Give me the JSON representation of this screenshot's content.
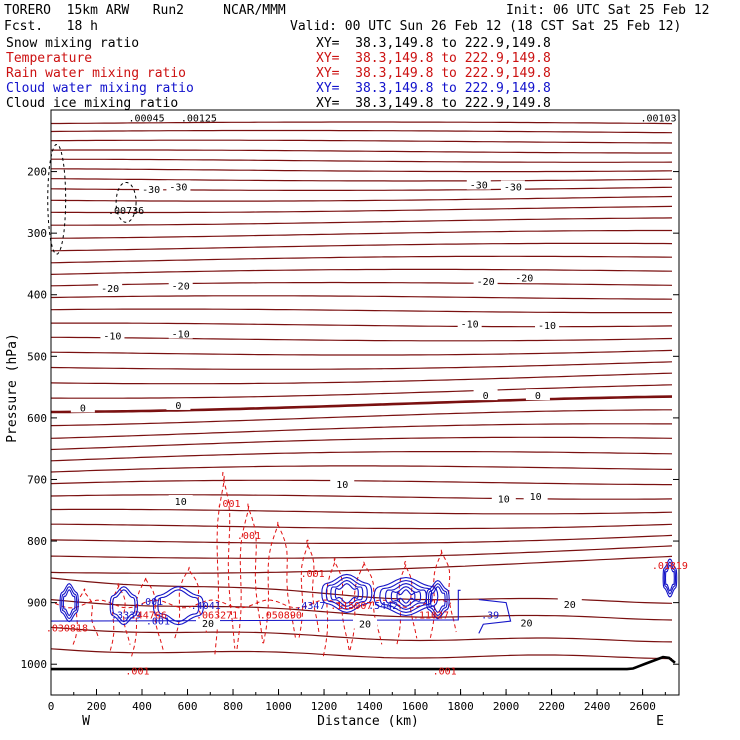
{
  "header": {
    "model": "TORERO  15km ARW   Run2     NCAR/MMM",
    "fcst": "Fcst.   18 h",
    "init": "Init: 06 UTC Sat 25 Feb 12",
    "valid": "Valid: 00 UTC Sun 26 Feb 12 (18 CST Sat 25 Feb 12)"
  },
  "legend": [
    {
      "label": "Snow mixing ratio",
      "xy": "XY=  38.3,149.8 to 222.9,149.8",
      "color": "#000000"
    },
    {
      "label": "Temperature",
      "xy": "XY=  38.3,149.8 to 222.9,149.8",
      "color": "#cc1111"
    },
    {
      "label": "Rain water mixing ratio",
      "xy": "XY=  38.3,149.8 to 222.9,149.8",
      "color": "#cc1111"
    },
    {
      "label": "Cloud water mixing ratio",
      "xy": "XY=  38.3,149.8 to 222.9,149.8",
      "color": "#1111cc"
    },
    {
      "label": "Cloud ice mixing ratio",
      "xy": "XY=  38.3,149.8 to 222.9,149.8",
      "color": "#000000"
    }
  ],
  "chart_data": {
    "type": "cross-section contour",
    "xlabel": "Distance (km)",
    "ylabel": "Pressure (hPa)",
    "xlim": [
      0,
      2760
    ],
    "ylim": [
      1050,
      100
    ],
    "x_ticks": [
      0,
      200,
      400,
      600,
      800,
      1000,
      1200,
      1400,
      1600,
      1800,
      2000,
      2200,
      2400,
      2600
    ],
    "y_ticks": [
      200,
      300,
      400,
      500,
      600,
      700,
      800,
      900,
      1000
    ],
    "left_endpoint": "W",
    "right_endpoint": "E",
    "colors": {
      "temperature": "#7a1010",
      "rain": "#e01010",
      "cloud_water": "#1515c8",
      "ground": "#000000"
    },
    "temperature_labels": [
      {
        "x": 440,
        "p": 228,
        "label": "-30"
      },
      {
        "x": 560,
        "p": 224,
        "label": "-30"
      },
      {
        "x": 1880,
        "p": 221,
        "label": "-30"
      },
      {
        "x": 2030,
        "p": 224,
        "label": "-30"
      },
      {
        "x": 260,
        "p": 389,
        "label": "-20"
      },
      {
        "x": 570,
        "p": 385,
        "label": "-20"
      },
      {
        "x": 1910,
        "p": 378,
        "label": "-20"
      },
      {
        "x": 2080,
        "p": 372,
        "label": "-20"
      },
      {
        "x": 270,
        "p": 466,
        "label": "-10"
      },
      {
        "x": 570,
        "p": 463,
        "label": "-10"
      },
      {
        "x": 1840,
        "p": 447,
        "label": "-10"
      },
      {
        "x": 2180,
        "p": 449,
        "label": "-10"
      },
      {
        "x": 140,
        "p": 583,
        "label": "0"
      },
      {
        "x": 560,
        "p": 579,
        "label": "0"
      },
      {
        "x": 1910,
        "p": 563,
        "label": "0"
      },
      {
        "x": 2140,
        "p": 563,
        "label": "0"
      },
      {
        "x": 570,
        "p": 735,
        "label": "10"
      },
      {
        "x": 1280,
        "p": 707,
        "label": "10"
      },
      {
        "x": 1990,
        "p": 731,
        "label": "10"
      },
      {
        "x": 2130,
        "p": 727,
        "label": "10"
      },
      {
        "x": 690,
        "p": 933,
        "label": "20"
      },
      {
        "x": 1380,
        "p": 934,
        "label": "20"
      },
      {
        "x": 2090,
        "p": 932,
        "label": "20"
      },
      {
        "x": 2280,
        "p": 902,
        "label": "20"
      }
    ],
    "maxima_labels": [
      {
        "x": 420,
        "p": 112,
        "label": ".00045",
        "color": "#000000"
      },
      {
        "x": 650,
        "p": 112,
        "label": ".00125",
        "color": "#000000"
      },
      {
        "x": 2670,
        "p": 112,
        "label": ".00103",
        "color": "#000000"
      },
      {
        "x": 330,
        "p": 262,
        "label": ".00736",
        "color": "#000000"
      },
      {
        "x": 780,
        "p": 738,
        "label": ".001",
        "color": "#e01010"
      },
      {
        "x": 870,
        "p": 790,
        "label": ".001",
        "color": "#e01010"
      },
      {
        "x": 1150,
        "p": 852,
        "label": ".001",
        "color": "#e01010"
      },
      {
        "x": 440,
        "p": 897,
        "label": ".001",
        "color": "#1515c8"
      },
      {
        "x": 70,
        "p": 940,
        "label": ".030818",
        "color": "#e01010"
      },
      {
        "x": 330,
        "p": 919,
        "label": ".3339",
        "color": "#1515c8"
      },
      {
        "x": 430,
        "p": 919,
        "label": ".44766",
        "color": "#e01010"
      },
      {
        "x": 470,
        "p": 929,
        "label": ".001",
        "color": "#1515c8"
      },
      {
        "x": 730,
        "p": 919,
        "label": ".063271",
        "color": "#e01010"
      },
      {
        "x": 680,
        "p": 904,
        "label": ".4041",
        "color": "#1515c8"
      },
      {
        "x": 1010,
        "p": 919,
        "label": ".050890",
        "color": "#e01010"
      },
      {
        "x": 1140,
        "p": 904,
        "label": ".4347",
        "color": "#1515c8"
      },
      {
        "x": 1320,
        "p": 904,
        "label": ".115907",
        "color": "#e01010"
      },
      {
        "x": 1460,
        "p": 904,
        "label": ".5442",
        "color": "#1515c8"
      },
      {
        "x": 1670,
        "p": 919,
        "label": ".11027",
        "color": "#e01010"
      },
      {
        "x": 1930,
        "p": 919,
        "label": ".39",
        "color": "#1515c8"
      },
      {
        "x": 2720,
        "p": 839,
        "label": ".01819",
        "color": "#e01010"
      },
      {
        "x": 380,
        "p": 1010,
        "label": ".001",
        "color": "#e01010"
      },
      {
        "x": 1730,
        "p": 1010,
        "label": ".001",
        "color": "#e01010"
      }
    ]
  }
}
